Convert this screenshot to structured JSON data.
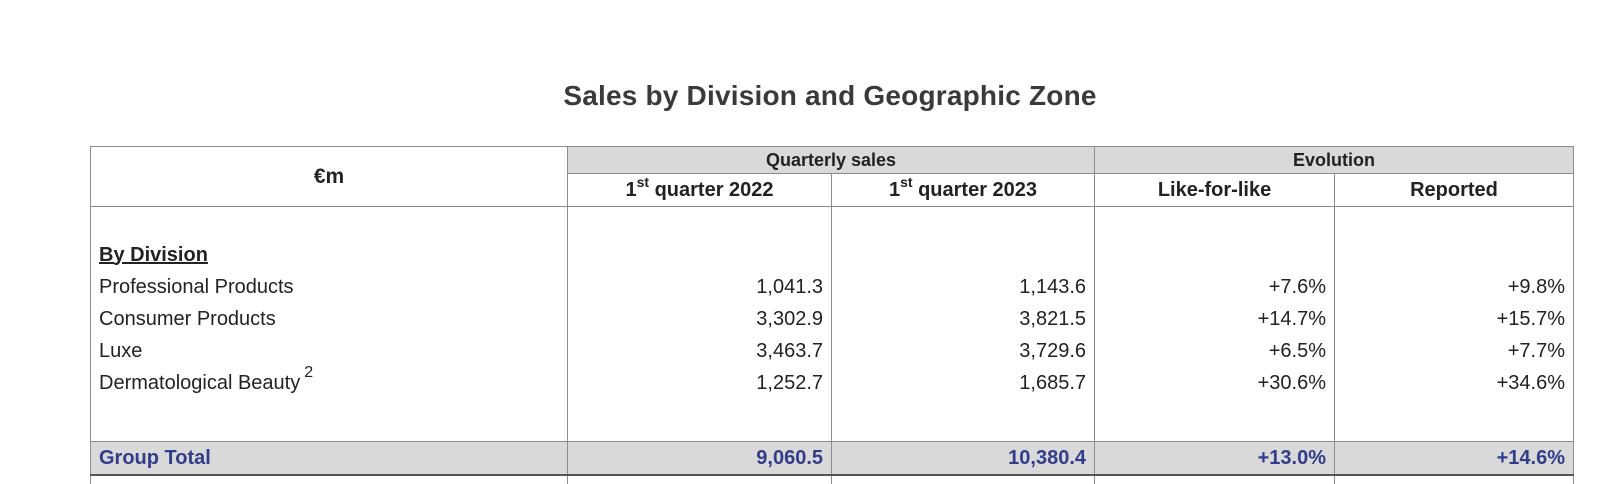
{
  "title": "Sales by Division and Geographic Zone",
  "header": {
    "unit": "€m",
    "group_quarterly": "Quarterly sales",
    "group_evolution": "Evolution",
    "q2022_ordinal": "1",
    "q2022_sup": "st",
    "q2022_rest": " quarter 2022",
    "q2023_ordinal": "1",
    "q2023_sup": "st",
    "q2023_rest": " quarter 2023",
    "like_for_like": "Like-for-like",
    "reported": "Reported"
  },
  "section_label": "By Division",
  "rows": [
    {
      "label": "Professional Products",
      "footnote": "",
      "q2022": "1,041.3",
      "q2023": "1,143.6",
      "lfl": "+7.6%",
      "reported": "+9.8%"
    },
    {
      "label": "Consumer Products",
      "footnote": "",
      "q2022": "3,302.9",
      "q2023": "3,821.5",
      "lfl": "+14.7%",
      "reported": "+15.7%"
    },
    {
      "label": "Luxe",
      "footnote": "",
      "q2022": "3,463.7",
      "q2023": "3,729.6",
      "lfl": "+6.5%",
      "reported": "+7.7%"
    },
    {
      "label": "Dermatological Beauty",
      "footnote": "2",
      "q2022": "1,252.7",
      "q2023": "1,685.7",
      "lfl": "+30.6%",
      "reported": "+34.6%"
    }
  ],
  "total": {
    "label": "Group Total",
    "q2022": "9,060.5",
    "q2023": "10,380.4",
    "lfl": "+13.0%",
    "reported": "+14.6%"
  }
}
